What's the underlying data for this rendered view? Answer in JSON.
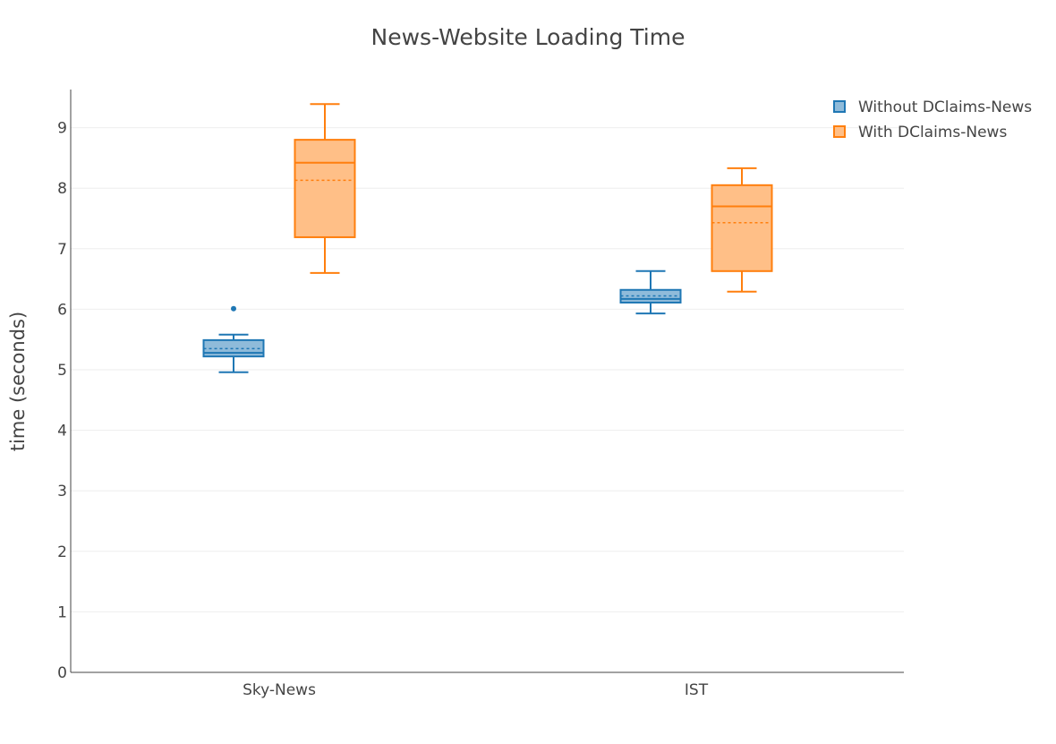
{
  "chart_data": {
    "type": "box",
    "title": "News-Website Loading Time",
    "xlabel": "",
    "ylabel": "time (seconds)",
    "ylim": [
      0,
      9.6
    ],
    "yticks": [
      "0",
      "1",
      "2",
      "3",
      "4",
      "5",
      "6",
      "7",
      "8",
      "9"
    ],
    "categories": [
      "Sky-News",
      "IST"
    ],
    "grid": "horizontal",
    "legend_position": "top-right",
    "series": [
      {
        "name": "Without DClaims-News",
        "color": "#1f77b4",
        "fill": "#8fbbda",
        "boxes": [
          {
            "category": "Sky-News",
            "min": 4.96,
            "q1": 5.22,
            "median": 5.28,
            "mean": 5.35,
            "q3": 5.49,
            "max": 5.58,
            "outliers": [
              6.01
            ]
          },
          {
            "category": "IST",
            "min": 5.93,
            "q1": 6.11,
            "median": 6.17,
            "mean": 6.22,
            "q3": 6.32,
            "max": 6.63,
            "outliers": []
          }
        ]
      },
      {
        "name": "With DClaims-News",
        "color": "#ff7f0e",
        "fill": "#ffbf87",
        "boxes": [
          {
            "category": "Sky-News",
            "min": 6.6,
            "q1": 7.19,
            "median": 8.42,
            "mean": 8.13,
            "q3": 8.8,
            "max": 9.39,
            "outliers": []
          },
          {
            "category": "IST",
            "min": 6.29,
            "q1": 6.63,
            "median": 7.7,
            "mean": 7.43,
            "q3": 8.05,
            "max": 8.33,
            "outliers": []
          }
        ]
      }
    ]
  }
}
